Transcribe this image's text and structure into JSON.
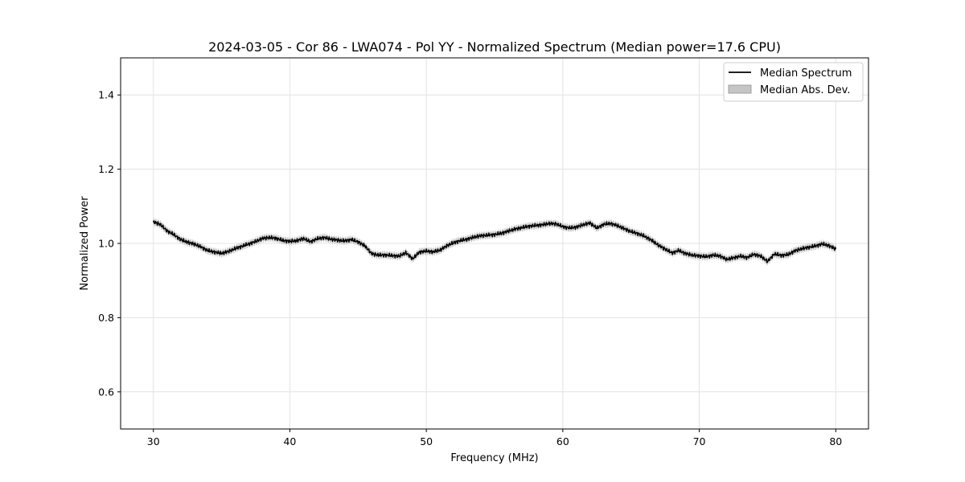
{
  "chart_data": {
    "type": "line",
    "title": "2024-03-05 - Cor 86 - LWA074 - Pol YY - Normalized Spectrum (Median power=17.6 CPU)",
    "xlabel": "Frequency (MHz)",
    "ylabel": "Normalized Power",
    "xlim": [
      27.6,
      82.4
    ],
    "ylim": [
      0.5,
      1.5
    ],
    "xticks": [
      30,
      40,
      50,
      60,
      70,
      80
    ],
    "yticks": [
      0.6,
      0.8,
      1.0,
      1.2,
      1.4
    ],
    "xtick_labels": [
      "30",
      "40",
      "50",
      "60",
      "70",
      "80"
    ],
    "ytick_labels": [
      "0.6",
      "0.8",
      "1.0",
      "1.2",
      "1.4"
    ],
    "grid": true,
    "legend_position": "top-right",
    "series": [
      {
        "name": "Median Spectrum",
        "kind": "line",
        "color": "#000000",
        "x": [
          30,
          30.5,
          31,
          31.5,
          32,
          32.5,
          33,
          33.5,
          34,
          34.5,
          35,
          35.5,
          36,
          36.5,
          37,
          37.5,
          38,
          38.5,
          39,
          39.5,
          40,
          40.5,
          41,
          41.5,
          42,
          42.5,
          43,
          43.5,
          44,
          44.5,
          45,
          45.5,
          46,
          46.5,
          47,
          47.5,
          48,
          48.5,
          49,
          49.5,
          50,
          50.5,
          51,
          51.5,
          52,
          52.5,
          53,
          53.5,
          54,
          54.5,
          55,
          55.5,
          56,
          56.5,
          57,
          57.5,
          58,
          58.5,
          59,
          59.5,
          60,
          60.5,
          61,
          61.5,
          62,
          62.5,
          63,
          63.5,
          64,
          64.5,
          65,
          65.5,
          66,
          66.5,
          67,
          67.5,
          68,
          68.5,
          69,
          69.5,
          70,
          70.5,
          71,
          71.5,
          72,
          72.5,
          73,
          73.5,
          74,
          74.5,
          75,
          75.5,
          76,
          76.5,
          77,
          77.5,
          78,
          78.5,
          79,
          79.5,
          80
        ],
        "y": [
          1.058,
          1.052,
          1.035,
          1.025,
          1.012,
          1.005,
          1.0,
          0.992,
          0.982,
          0.978,
          0.974,
          0.979,
          0.986,
          0.992,
          0.998,
          1.004,
          1.012,
          1.014,
          1.012,
          1.006,
          1.004,
          1.006,
          1.012,
          1.004,
          1.012,
          1.016,
          1.012,
          1.01,
          1.008,
          1.012,
          1.006,
          0.995,
          0.974,
          0.97,
          0.97,
          0.968,
          0.966,
          0.975,
          0.958,
          0.976,
          0.978,
          0.976,
          0.98,
          0.992,
          1.0,
          1.006,
          1.01,
          1.016,
          1.02,
          1.022,
          1.024,
          1.028,
          1.034,
          1.04,
          1.044,
          1.048,
          1.05,
          1.052,
          1.055,
          1.054,
          1.046,
          1.042,
          1.044,
          1.05,
          1.054,
          1.04,
          1.05,
          1.052,
          1.046,
          1.038,
          1.03,
          1.025,
          1.018,
          1.008,
          0.995,
          0.985,
          0.975,
          0.982,
          0.974,
          0.97,
          0.968,
          0.966,
          0.97,
          0.968,
          0.958,
          0.962,
          0.966,
          0.962,
          0.97,
          0.965,
          0.95,
          0.97,
          0.966,
          0.968,
          0.978,
          0.984,
          0.988,
          0.992,
          0.998,
          0.994,
          0.985
        ]
      },
      {
        "name": "Median Abs. Dev.",
        "kind": "band",
        "color": "#c5c5c5",
        "halfwidth": 0.009
      }
    ]
  }
}
